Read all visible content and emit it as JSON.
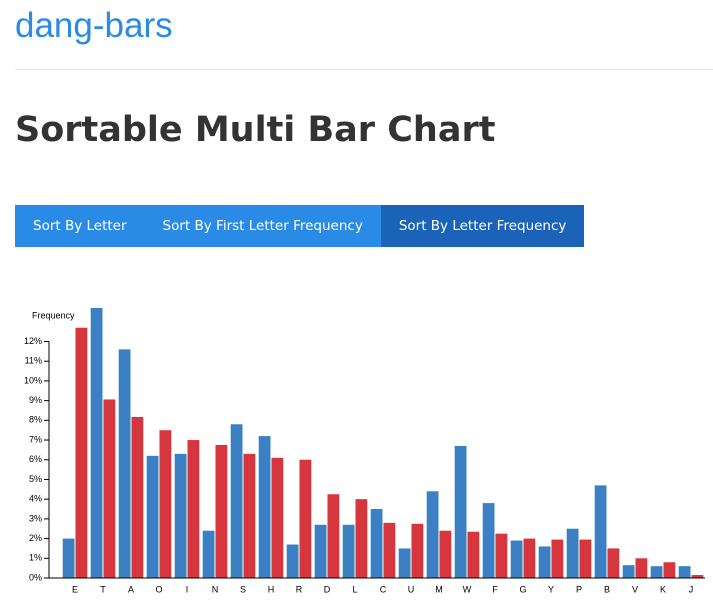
{
  "header": {
    "title": "dang-bars"
  },
  "heading": "Sortable Multi Bar Chart",
  "buttons": [
    "Sort By Letter",
    "Sort By First Letter Frequency",
    "Sort By Letter Frequency"
  ],
  "chart_data": {
    "type": "bar",
    "y_label": "Frequency",
    "categories": [
      "E",
      "T",
      "A",
      "O",
      "I",
      "N",
      "S",
      "H",
      "R",
      "D",
      "L",
      "C",
      "U",
      "M",
      "W",
      "F",
      "G",
      "Y",
      "P",
      "B",
      "V",
      "K",
      "J"
    ],
    "series": [
      {
        "color": "#3a80c2",
        "values": [
          2.0,
          13.7,
          11.6,
          6.2,
          6.3,
          2.4,
          7.8,
          7.2,
          1.7,
          2.7,
          2.7,
          3.5,
          1.5,
          4.4,
          6.7,
          3.8,
          1.9,
          1.6,
          2.5,
          4.7,
          0.65,
          0.6,
          0.6
        ]
      },
      {
        "color": "#d6373f",
        "values": [
          12.7,
          9.06,
          8.17,
          7.5,
          7.0,
          6.75,
          6.3,
          6.1,
          6.0,
          4.25,
          4.0,
          2.8,
          2.75,
          2.4,
          2.35,
          2.25,
          2.0,
          1.95,
          1.95,
          1.5,
          1.0,
          0.8,
          0.15
        ]
      }
    ],
    "ylim": [
      0,
      13.7
    ],
    "yticks": [
      {
        "value": 0,
        "label": "0%"
      },
      {
        "value": 1,
        "label": "1%"
      },
      {
        "value": 2,
        "label": "2%"
      },
      {
        "value": 3,
        "label": "3%"
      },
      {
        "value": 4,
        "label": "4%"
      },
      {
        "value": 5,
        "label": "5%"
      },
      {
        "value": 6,
        "label": "6%"
      },
      {
        "value": 7,
        "label": "7%"
      },
      {
        "value": 8,
        "label": "8%"
      },
      {
        "value": 9,
        "label": "9%"
      },
      {
        "value": 10,
        "label": "10%"
      },
      {
        "value": 11,
        "label": "11%"
      },
      {
        "value": 12,
        "label": "12%"
      }
    ],
    "grid": false
  }
}
